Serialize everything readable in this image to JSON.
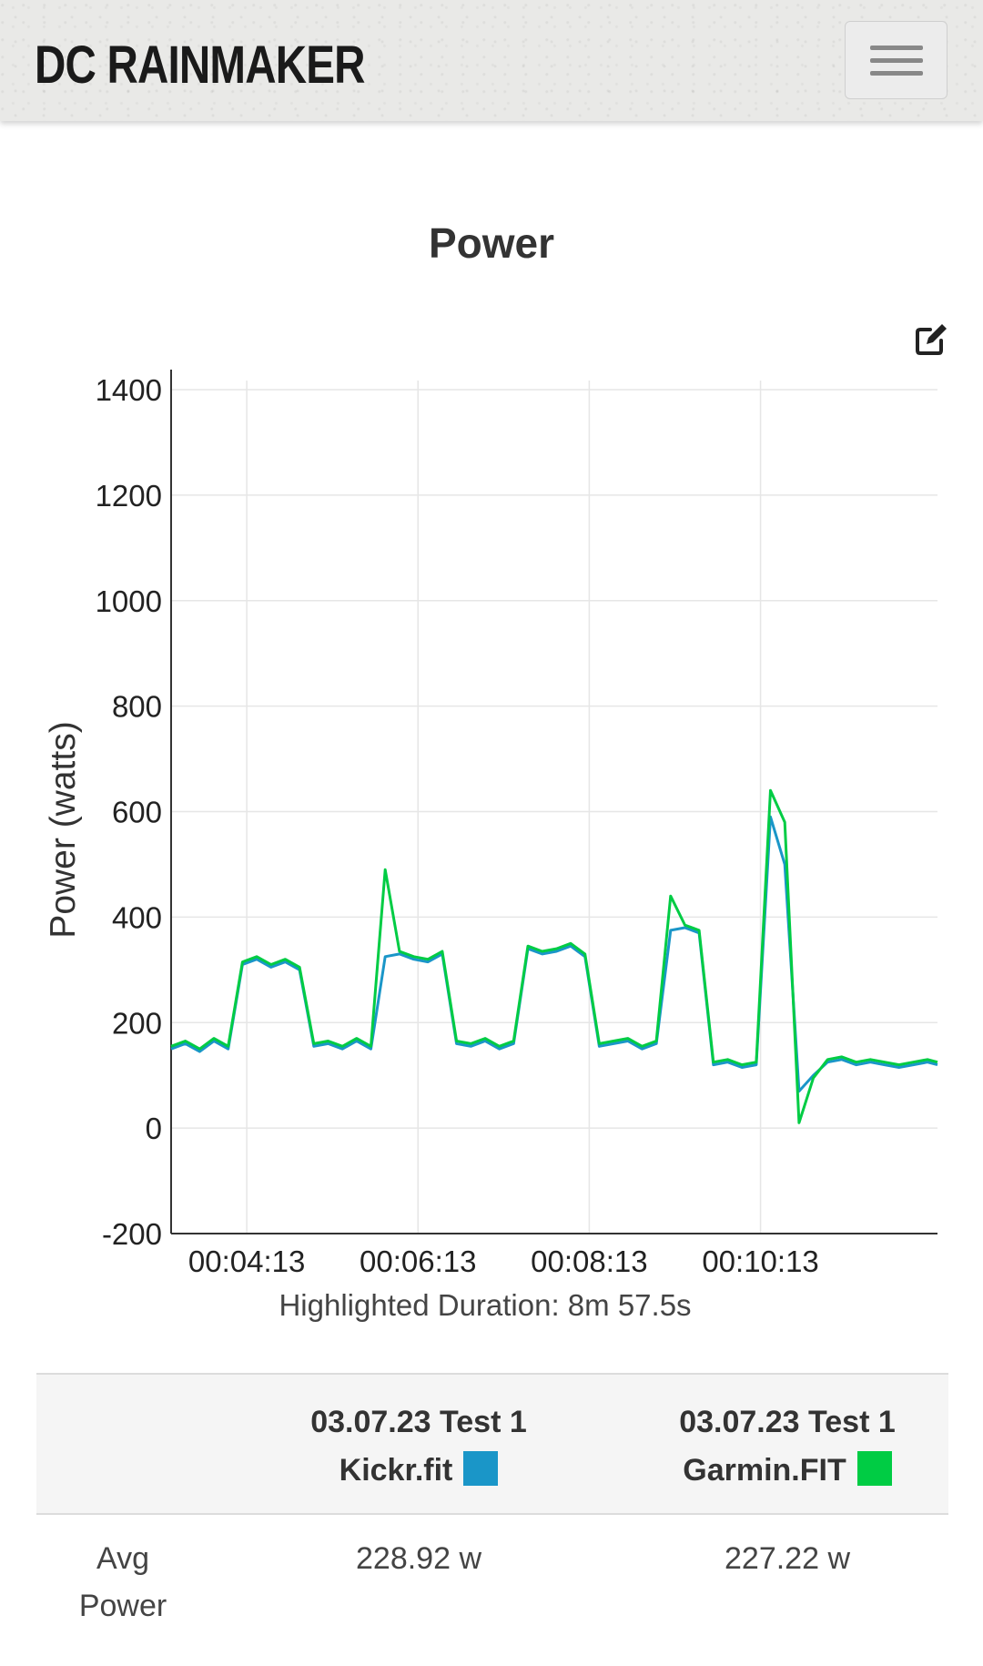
{
  "header": {
    "logo_text": "DC RAINMAKER"
  },
  "icons": {
    "menu": "hamburger-menu-icon",
    "edit": "edit-icon"
  },
  "chart_data": {
    "type": "line",
    "title": "Power",
    "ylabel": "Power (watts)",
    "xlabel": "Highlighted Duration: 8m 57.5s",
    "ylim": [
      -200,
      1400
    ],
    "yticks": [
      -200,
      0,
      200,
      400,
      600,
      800,
      1000,
      1200,
      1400
    ],
    "xlim": [
      "00:03:20",
      "00:12:17"
    ],
    "xticks": [
      "00:04:13",
      "00:06:13",
      "00:08:13",
      "00:10:13"
    ],
    "grid": true,
    "series": [
      {
        "name": "03.07.23 Test 1 Kickr.fit",
        "color": "#1a96c8",
        "x": [
          "00:03:20",
          "00:03:30",
          "00:03:40",
          "00:03:50",
          "00:04:00",
          "00:04:10",
          "00:04:20",
          "00:04:30",
          "00:04:40",
          "00:04:50",
          "00:05:00",
          "00:05:10",
          "00:05:20",
          "00:05:30",
          "00:05:40",
          "00:05:50",
          "00:06:00",
          "00:06:10",
          "00:06:20",
          "00:06:30",
          "00:06:40",
          "00:06:50",
          "00:07:00",
          "00:07:10",
          "00:07:20",
          "00:07:30",
          "00:07:40",
          "00:07:50",
          "00:08:00",
          "00:08:10",
          "00:08:20",
          "00:08:30",
          "00:08:40",
          "00:08:50",
          "00:09:00",
          "00:09:10",
          "00:09:20",
          "00:09:30",
          "00:09:40",
          "00:09:50",
          "00:10:00",
          "00:10:10",
          "00:10:20",
          "00:10:30",
          "00:10:40",
          "00:10:50",
          "00:11:00",
          "00:11:10",
          "00:11:20",
          "00:11:30",
          "00:11:40",
          "00:11:50",
          "00:12:00",
          "00:12:10",
          "00:12:17"
        ],
        "values": [
          150,
          160,
          145,
          165,
          150,
          310,
          320,
          305,
          315,
          300,
          155,
          160,
          150,
          165,
          150,
          325,
          330,
          320,
          315,
          330,
          160,
          155,
          165,
          150,
          160,
          340,
          330,
          335,
          345,
          325,
          155,
          160,
          165,
          150,
          160,
          375,
          380,
          370,
          120,
          125,
          115,
          120,
          590,
          500,
          70,
          100,
          125,
          130,
          120,
          125,
          120,
          115,
          120,
          125,
          120
        ]
      },
      {
        "name": "03.07.23 Test 1 Garmin.FIT",
        "color": "#00cc44",
        "x": [
          "00:03:20",
          "00:03:30",
          "00:03:40",
          "00:03:50",
          "00:04:00",
          "00:04:10",
          "00:04:20",
          "00:04:30",
          "00:04:40",
          "00:04:50",
          "00:05:00",
          "00:05:10",
          "00:05:20",
          "00:05:30",
          "00:05:40",
          "00:05:50",
          "00:06:00",
          "00:06:10",
          "00:06:20",
          "00:06:30",
          "00:06:40",
          "00:06:50",
          "00:07:00",
          "00:07:10",
          "00:07:20",
          "00:07:30",
          "00:07:40",
          "00:07:50",
          "00:08:00",
          "00:08:10",
          "00:08:20",
          "00:08:30",
          "00:08:40",
          "00:08:50",
          "00:09:00",
          "00:09:10",
          "00:09:20",
          "00:09:30",
          "00:09:40",
          "00:09:50",
          "00:10:00",
          "00:10:10",
          "00:10:20",
          "00:10:30",
          "00:10:40",
          "00:10:50",
          "00:11:00",
          "00:11:10",
          "00:11:20",
          "00:11:30",
          "00:11:40",
          "00:11:50",
          "00:12:00",
          "00:12:10",
          "00:12:17"
        ],
        "values": [
          155,
          165,
          150,
          170,
          155,
          315,
          325,
          310,
          320,
          305,
          160,
          165,
          155,
          170,
          155,
          490,
          335,
          325,
          320,
          335,
          165,
          160,
          170,
          155,
          165,
          345,
          335,
          340,
          350,
          330,
          160,
          165,
          170,
          155,
          165,
          440,
          385,
          375,
          125,
          130,
          120,
          125,
          640,
          580,
          10,
          95,
          130,
          135,
          125,
          130,
          125,
          120,
          125,
          130,
          125
        ]
      }
    ]
  },
  "table": {
    "columns": [
      {
        "line1": "03.07.23 Test 1",
        "line2": "Kickr.fit",
        "swatch_color": "#1a96c8"
      },
      {
        "line1": "03.07.23 Test 1",
        "line2": "Garmin.FIT",
        "swatch_color": "#00cc44"
      }
    ],
    "rows": [
      {
        "label_line1": "Avg",
        "label_line2": "Power",
        "values": [
          "228.92 w",
          "227.22 w"
        ]
      }
    ]
  }
}
